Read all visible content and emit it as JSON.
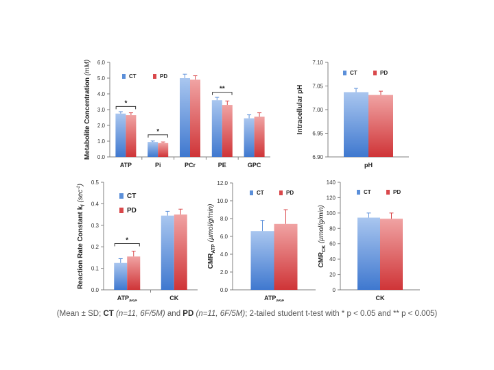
{
  "colors": {
    "ct": "#5b8fd9",
    "ct_light": "#a9c6ef",
    "pd": "#d9484b",
    "pd_light": "#f0a3a3"
  },
  "footnote": {
    "open": "(Mean ± SD; ",
    "ct_label": "CT",
    "ct_detail": "(n=11, 6F/5M)",
    "and": " and ",
    "pd_label": "PD",
    "pd_detail": "(n=11, 6F/5M)",
    "rest": "; 2-tailed student t-test with * p < 0.05 and ** p < 0.005)"
  },
  "chart_data": [
    {
      "id": "metabolites",
      "type": "bar",
      "title": "",
      "ylabel": "Metabolite Concentration",
      "ylabel_unit": "(mM)",
      "xlabel": "",
      "ylim": [
        0,
        6
      ],
      "yticks": [
        "0.0",
        "1.0",
        "2.0",
        "3.0",
        "4.0",
        "5.0",
        "6.0"
      ],
      "grid": false,
      "legend": {
        "position": "top-left",
        "entries": [
          "CT",
          "PD"
        ]
      },
      "categories": [
        "ATP",
        "Pi",
        "PCr",
        "PE",
        "GPC"
      ],
      "series": [
        {
          "name": "CT",
          "values": [
            2.75,
            0.95,
            5.0,
            3.6,
            2.45
          ],
          "errors": [
            0.12,
            0.06,
            0.25,
            0.18,
            0.22
          ]
        },
        {
          "name": "PD",
          "values": [
            2.65,
            0.88,
            4.9,
            3.3,
            2.55
          ],
          "errors": [
            0.15,
            0.07,
            0.25,
            0.25,
            0.25
          ]
        }
      ],
      "annotations": [
        {
          "category": "ATP",
          "text": "*",
          "y": 3.2
        },
        {
          "category": "Pi",
          "text": "*",
          "y": 1.4
        },
        {
          "category": "PE",
          "text": "**",
          "y": 4.1
        }
      ]
    },
    {
      "id": "ph",
      "type": "bar",
      "title": "",
      "ylabel": "Intracellular pH",
      "xlabel": "",
      "ylim": [
        6.9,
        7.1
      ],
      "yticks": [
        "6.90",
        "6.95",
        "7.00",
        "7.05",
        "7.10"
      ],
      "grid": false,
      "legend": {
        "position": "top",
        "entries": [
          "CT",
          "PD"
        ]
      },
      "categories": [
        "pH"
      ],
      "series": [
        {
          "name": "CT",
          "values": [
            7.037
          ],
          "errors": [
            0.008
          ]
        },
        {
          "name": "PD",
          "values": [
            7.031
          ],
          "errors": [
            0.008
          ]
        }
      ],
      "annotations": []
    },
    {
      "id": "kf",
      "type": "bar",
      "title": "",
      "ylabel": "Reaction Rate Constant k",
      "ylabel_sub": "f",
      "ylabel_unit": "(sec",
      "ylabel_sup": "-1",
      "ylabel_close": ")",
      "xlabel": "",
      "ylim": [
        0,
        0.5
      ],
      "yticks": [
        "0.0",
        "0.1",
        "0.2",
        "0.3",
        "0.4",
        "0.5"
      ],
      "grid": false,
      "legend": {
        "position": "top-left",
        "entries": [
          "CT",
          "PD"
        ]
      },
      "categories": [
        "ATPase",
        "CK"
      ],
      "category_labels": [
        {
          "base": "ATP",
          "sub": "ase"
        },
        {
          "base": "CK",
          "sub": ""
        }
      ],
      "series": [
        {
          "name": "CT",
          "values": [
            0.125,
            0.345
          ],
          "errors": [
            0.02,
            0.02
          ]
        },
        {
          "name": "PD",
          "values": [
            0.155,
            0.35
          ],
          "errors": [
            0.025,
            0.025
          ]
        }
      ],
      "annotations": [
        {
          "category": "ATPase",
          "text": "*",
          "y": 0.215
        }
      ]
    },
    {
      "id": "cmr_atp",
      "type": "bar",
      "title": "",
      "ylabel": "CMR",
      "ylabel_sub": "ATP",
      "ylabel_unit": "(µmol/g/min)",
      "xlabel": "",
      "ylim": [
        0,
        12
      ],
      "yticks": [
        "0.0",
        "2.0",
        "4.0",
        "6.0",
        "8.0",
        "10.0",
        "12.0"
      ],
      "grid": false,
      "legend": {
        "position": "top",
        "entries": [
          "CT",
          "PD"
        ]
      },
      "categories": [
        "ATPase"
      ],
      "category_labels": [
        {
          "base": "ATP",
          "sub": "ase"
        }
      ],
      "series": [
        {
          "name": "CT",
          "values": [
            6.6
          ],
          "errors": [
            1.2
          ]
        },
        {
          "name": "PD",
          "values": [
            7.4
          ],
          "errors": [
            1.6
          ]
        }
      ],
      "annotations": []
    },
    {
      "id": "cmr_ck",
      "type": "bar",
      "title": "",
      "ylabel": "CMR",
      "ylabel_sub": "CK",
      "ylabel_unit": "(µmol/g/min)",
      "xlabel": "",
      "ylim": [
        0,
        140
      ],
      "yticks": [
        "0",
        "20",
        "40",
        "60",
        "80",
        "100",
        "120",
        "140"
      ],
      "grid": false,
      "legend": {
        "position": "top",
        "entries": [
          "CT",
          "PD"
        ]
      },
      "categories": [
        "CK"
      ],
      "category_labels": [
        {
          "base": "CK",
          "sub": ""
        }
      ],
      "series": [
        {
          "name": "CT",
          "values": [
            94
          ],
          "errors": [
            6
          ]
        },
        {
          "name": "PD",
          "values": [
            92.5
          ],
          "errors": [
            7.5
          ]
        }
      ],
      "annotations": []
    }
  ]
}
